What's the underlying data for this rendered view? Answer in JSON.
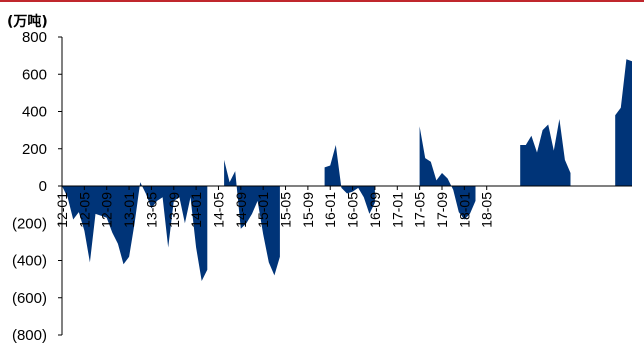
{
  "chart_data": {
    "type": "area",
    "unit_label": "(万吨)",
    "y_ticks": [
      "800",
      "600",
      "400",
      "200",
      "0",
      "(200)",
      "(400)",
      "(600)",
      "(800)"
    ],
    "ylim": [
      -800,
      800
    ],
    "x_tick_labels": [
      "12-01",
      "12-05",
      "12-09",
      "13-01",
      "13-05",
      "13-09",
      "14-01",
      "14-05",
      "14-09",
      "15-01",
      "15-05",
      "15-09",
      "16-01",
      "16-05",
      "16-09",
      "17-01",
      "17-05",
      "17-09",
      "18-01",
      "18-05"
    ],
    "color": "#003478",
    "series": [
      {
        "values": [
          0,
          -60,
          -180,
          -140,
          -240,
          -410,
          -150,
          -160,
          -170,
          -250,
          -310,
          -420,
          -380,
          -200,
          20,
          -40,
          -120,
          -80,
          -60,
          -330,
          -80,
          -60,
          -200,
          -60,
          -330,
          -510,
          -450,
          null,
          null,
          140,
          20,
          80,
          -230,
          -200,
          -150,
          -80,
          -260,
          -410,
          -480,
          -380,
          null,
          null,
          null,
          null,
          null,
          null,
          null,
          100,
          110,
          220,
          -10,
          -40,
          -30,
          -10,
          -60,
          -150,
          -90,
          null,
          null,
          null,
          null,
          null,
          null,
          null,
          320,
          150,
          130,
          30,
          70,
          40,
          -20,
          -140,
          -180,
          -150,
          -80,
          null,
          null,
          null,
          null,
          null,
          null,
          null,
          220,
          220,
          270,
          180,
          300,
          330,
          190,
          360,
          140,
          70,
          null,
          null,
          null,
          null,
          null,
          null,
          null,
          380,
          420,
          680,
          670
        ]
      }
    ]
  }
}
